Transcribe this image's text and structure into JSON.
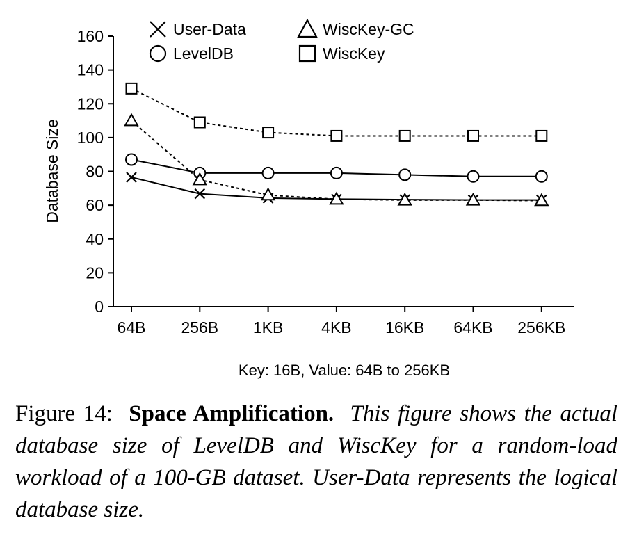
{
  "chart_data": {
    "type": "line",
    "categories": [
      "64B",
      "256B",
      "1KB",
      "4KB",
      "16KB",
      "64KB",
      "256KB"
    ],
    "series": [
      {
        "name": "User-Data",
        "marker": "cross",
        "dash": "solid",
        "values": [
          76.5,
          66.8,
          64.2,
          63.6,
          63.3,
          63.1,
          63.1
        ]
      },
      {
        "name": "LevelDB",
        "marker": "circle",
        "dash": "solid",
        "values": [
          87,
          79,
          79,
          79,
          78,
          77,
          77
        ]
      },
      {
        "name": "WiscKey-GC",
        "marker": "triangle",
        "dash": "dotted",
        "values": [
          110,
          75,
          66,
          63.5,
          63,
          63,
          62.7
        ]
      },
      {
        "name": "WiscKey",
        "marker": "square",
        "dash": "dotted",
        "values": [
          129,
          109,
          103,
          101,
          101,
          101,
          101
        ]
      }
    ],
    "xlabel": "Key: 16B, Value: 64B to 256KB",
    "ylabel": "Database Size",
    "ylim": [
      0,
      160
    ],
    "yticks": [
      0,
      20,
      40,
      60,
      80,
      100,
      120,
      140,
      160
    ],
    "grid": false,
    "legend": "top, two columns"
  },
  "caption": {
    "label": "Figure 14:",
    "title": "Space Amplification.",
    "body": "This figure shows the actual database size of LevelDB and WiscKey for a random-load workload of a 100-GB dataset. User-Data represents the logical database size."
  }
}
